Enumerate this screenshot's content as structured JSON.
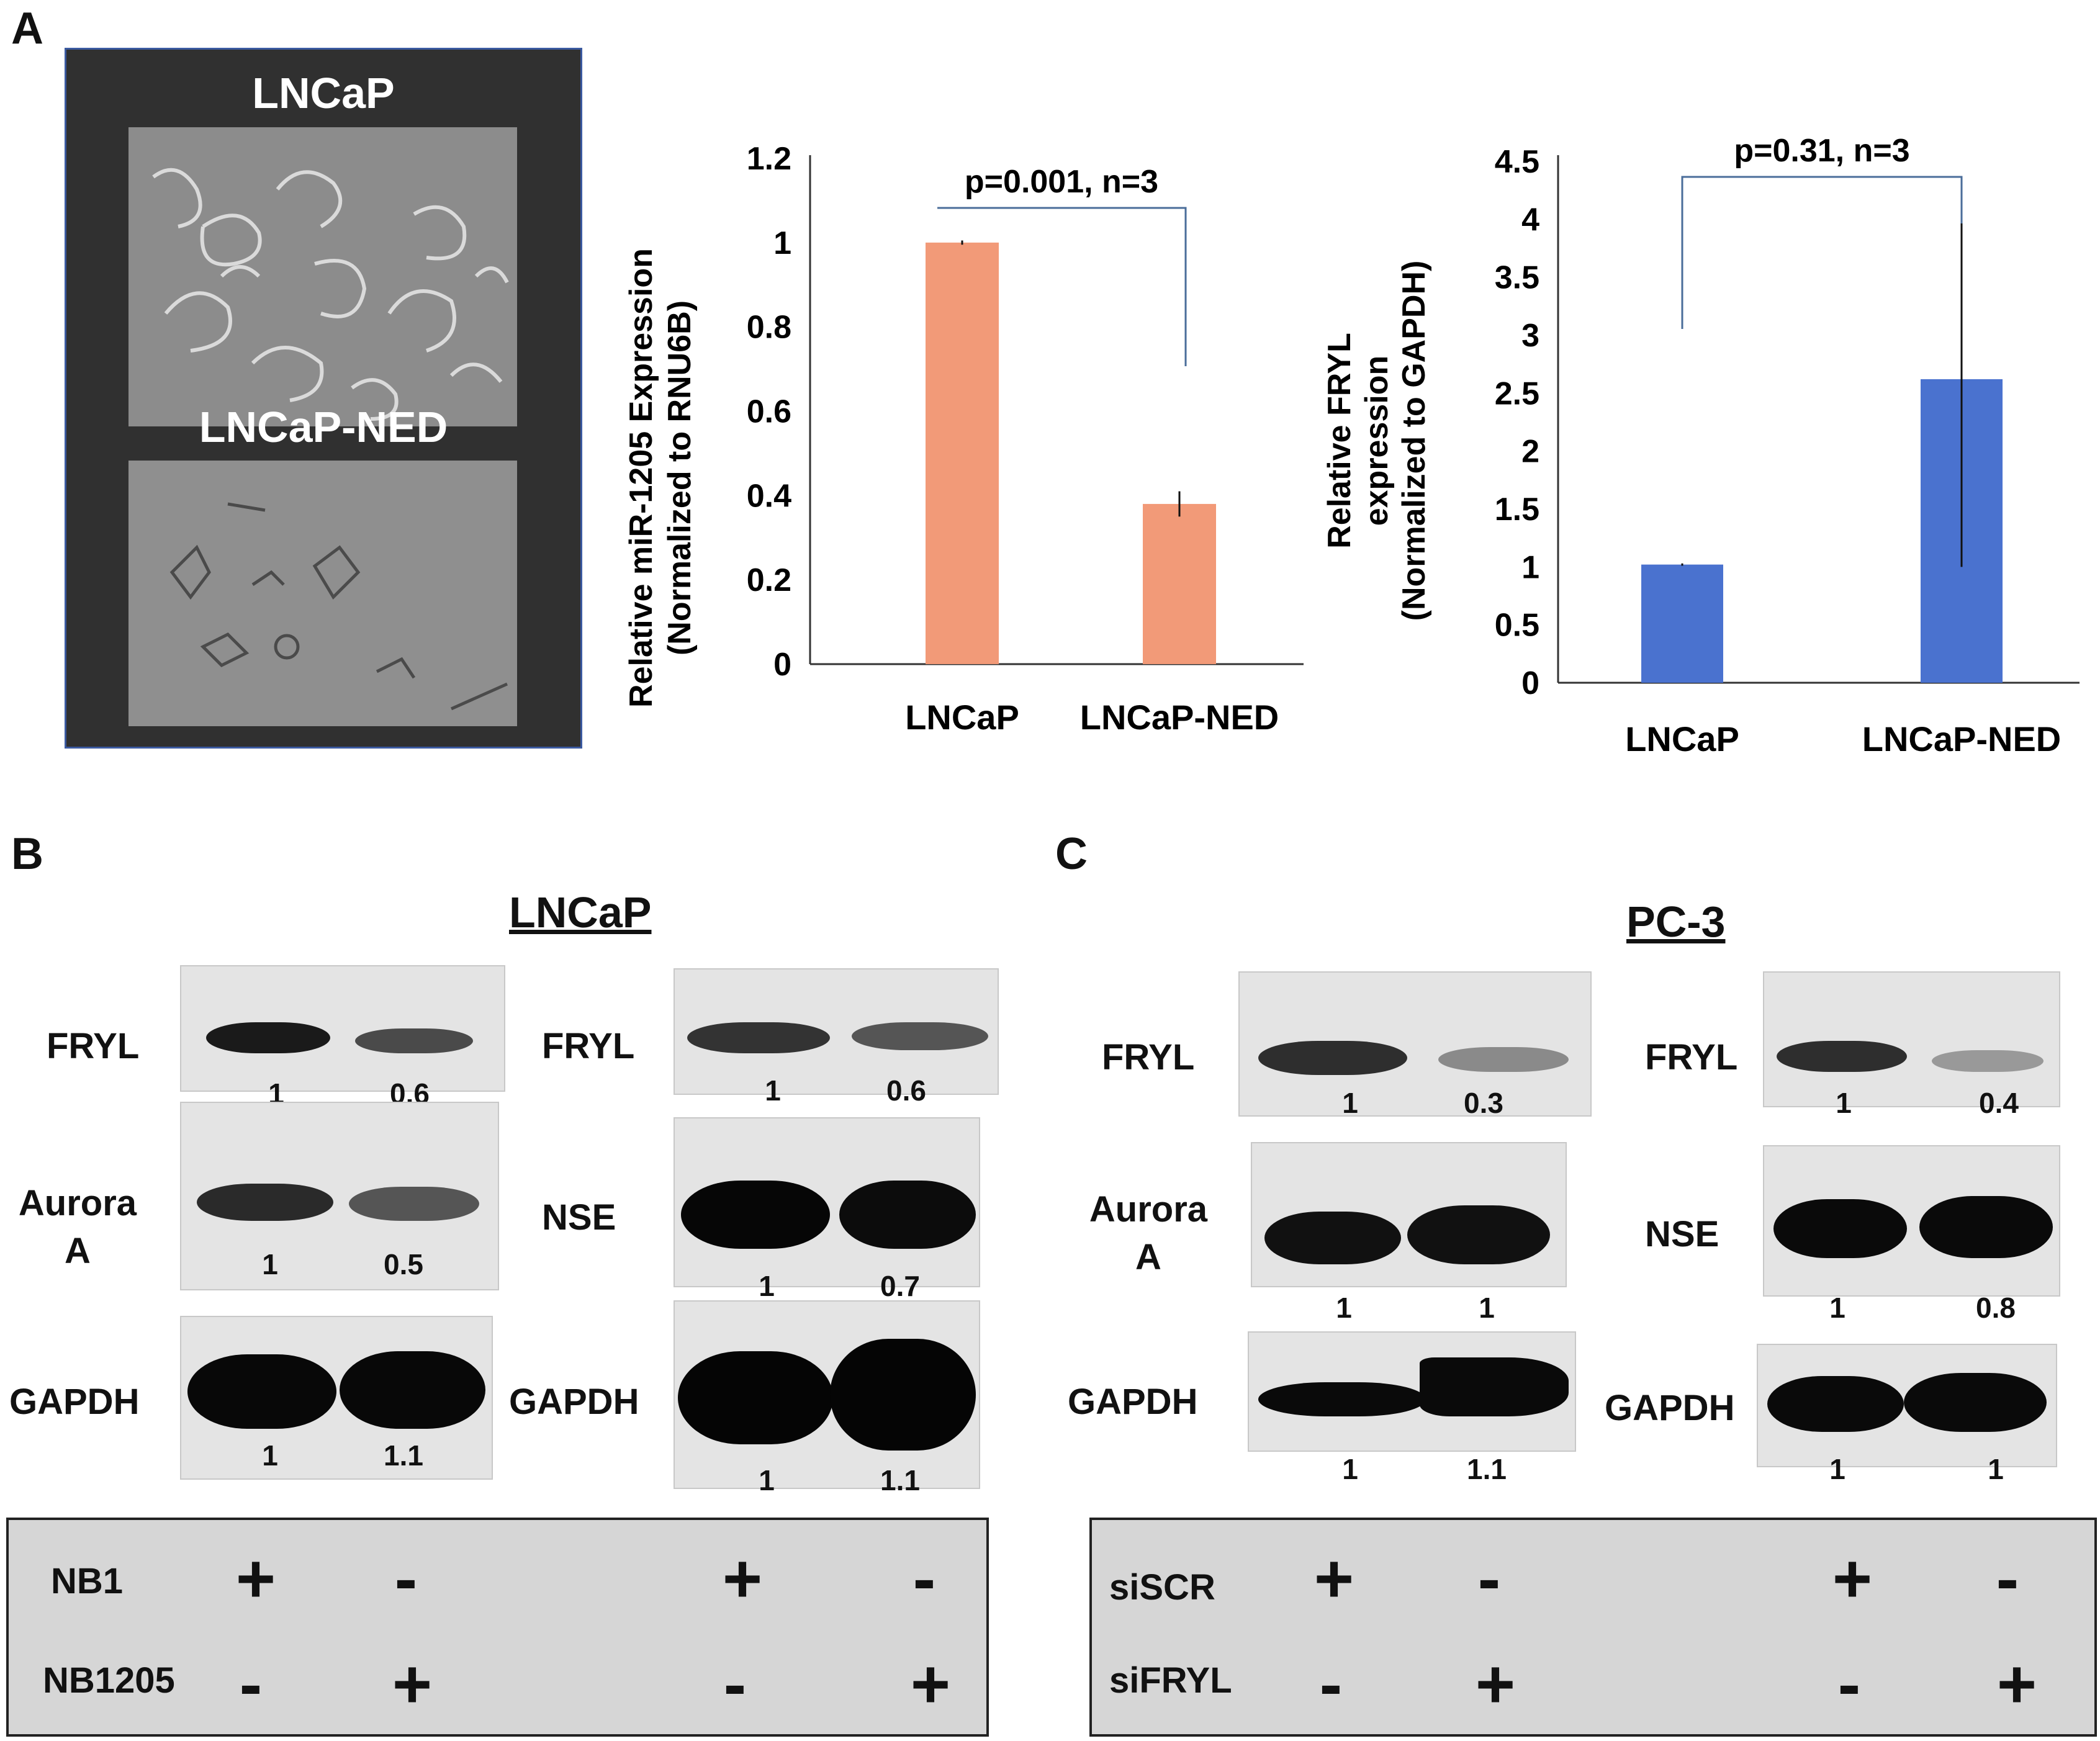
{
  "panels": {
    "a": "A",
    "b": "B",
    "c": "C"
  },
  "micrographs": {
    "top_title": "LNCaP",
    "bottom_title": "LNCaP-NED"
  },
  "chart_data": [
    {
      "type": "bar",
      "categories": [
        "LNCaP",
        "LNCaP-NED"
      ],
      "values": [
        1.0,
        0.38
      ],
      "errors": [
        0.005,
        0.03
      ],
      "ylabel_line1": "Relative miR-1205 Expression",
      "ylabel_line2": "(Normalized to RNU6B)",
      "ylim": [
        0,
        1.2
      ],
      "yticks": [
        "0",
        "0.2",
        "0.4",
        "0.6",
        "0.8",
        "1",
        "1.2"
      ],
      "annotation": "p=0.001, n=3",
      "color": "#f29a78"
    },
    {
      "type": "bar",
      "categories": [
        "LNCaP",
        "LNCaP-NED"
      ],
      "values": [
        1.02,
        2.62
      ],
      "errors": [
        0.01,
        1.62
      ],
      "ylabel_line1": "Relative FRYL",
      "ylabel_line2": "expression",
      "ylabel_line3": "(Normalized to GAPDH)",
      "ylim": [
        0,
        4.5
      ],
      "yticks": [
        "0",
        "0.5",
        "1",
        "1.5",
        "2",
        "2.5",
        "3",
        "3.5",
        "4",
        "4.5"
      ],
      "annotation": "p=0.31, n=3",
      "color": "#4a72cf"
    }
  ],
  "panel_b": {
    "title": "LNCaP",
    "left": {
      "fryl": {
        "label": "FRYL",
        "q1": "1",
        "q2": "0.6"
      },
      "aurora": {
        "label1": "Aurora",
        "label2": "A",
        "q1": "1",
        "q2": "0.5"
      },
      "gapdh": {
        "label": "GAPDH",
        "q1": "1",
        "q2": "1.1"
      }
    },
    "right": {
      "fryl": {
        "label": "FRYL",
        "q1": "1",
        "q2": "0.6"
      },
      "nse": {
        "label": "NSE",
        "q1": "1",
        "q2": "0.7"
      },
      "gapdh": {
        "label": "GAPDH",
        "q1": "1",
        "q2": "1.1"
      }
    },
    "table": {
      "row1_label": "NB1",
      "row2_label": "NB1205",
      "row1_signs": [
        "+",
        "-",
        "+",
        "-"
      ],
      "row2_signs": [
        "-",
        "+",
        "-",
        "+"
      ]
    }
  },
  "panel_c": {
    "title": "PC-3",
    "left": {
      "fryl": {
        "label": "FRYL",
        "q1": "1",
        "q2": "0.3"
      },
      "aurora": {
        "label1": "Aurora",
        "label2": "A",
        "q1": "1",
        "q2": "1"
      },
      "gapdh": {
        "label": "GAPDH",
        "q1": "1",
        "q2": "1.1"
      }
    },
    "right": {
      "fryl": {
        "label": "FRYL",
        "q1": "1",
        "q2": "0.4"
      },
      "nse": {
        "label": "NSE",
        "q1": "1",
        "q2": "0.8"
      },
      "gapdh": {
        "label": "GAPDH",
        "q1": "1",
        "q2": "1"
      }
    },
    "table": {
      "row1_label": "siSCR",
      "row2_label": "siFRYL",
      "row1_signs": [
        "+",
        "-",
        "+",
        "-"
      ],
      "row2_signs": [
        "-",
        "+",
        "-",
        "+"
      ]
    }
  }
}
